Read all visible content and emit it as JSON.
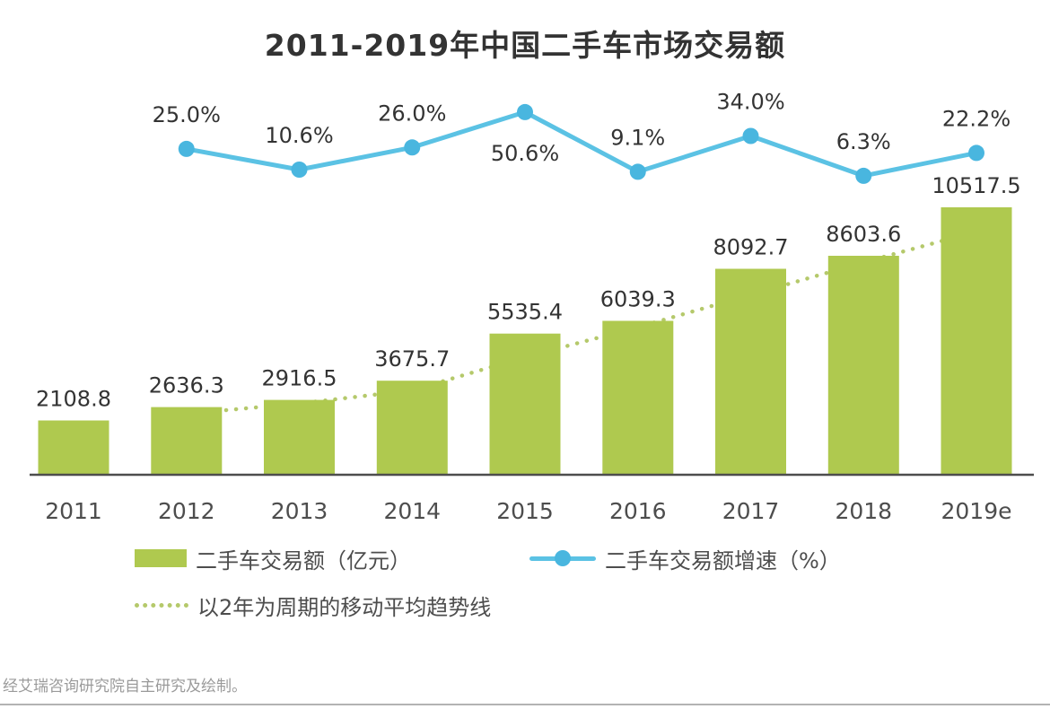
{
  "chart_data": {
    "type": "bar+line",
    "title": "2011-2019年中国二手车市场交易额",
    "categories": [
      "2011",
      "2012",
      "2013",
      "2014",
      "2015",
      "2016",
      "2017",
      "2018",
      "2019e"
    ],
    "series": [
      {
        "name": "二手车交易额（亿元）",
        "type": "bar",
        "color": "#AFC94F",
        "values": [
          2108.8,
          2636.3,
          2916.5,
          3675.7,
          5535.4,
          6039.3,
          8092.7,
          8603.6,
          10517.5
        ],
        "labels": [
          "2108.8",
          "2636.3",
          "2916.5",
          "3675.7",
          "5535.4",
          "6039.3",
          "8092.7",
          "8603.6",
          "10517.5"
        ]
      },
      {
        "name": "二手车交易额增速（%）",
        "type": "line",
        "color": "#5BC2E4",
        "marker_color": "#49B6DF",
        "categories": [
          "2012",
          "2013",
          "2014",
          "2015",
          "2016",
          "2017",
          "2018",
          "2019e"
        ],
        "values": [
          25.0,
          10.6,
          26.0,
          50.6,
          9.1,
          34.0,
          6.3,
          22.2
        ],
        "labels": [
          "25.0%",
          "10.6%",
          "26.0%",
          "50.6%",
          "9.1%",
          "34.0%",
          "6.3%",
          "22.2%"
        ]
      },
      {
        "name": "以2年为周期的移动平均趋势线",
        "type": "dotted-line",
        "color": "#B5C96B",
        "categories": [
          "2012",
          "2013",
          "2014",
          "2015",
          "2016",
          "2017",
          "2018",
          "2019e"
        ],
        "values": [
          2372.6,
          2776.4,
          3296.1,
          4605.6,
          5787.4,
          7066.0,
          8348.2,
          9560.6
        ]
      }
    ],
    "xlabel": "",
    "ylabel": "",
    "ylim_bar": [
      0,
      10600
    ],
    "ylim_pct": [
      0,
      60
    ],
    "grid": false,
    "legend_position": "bottom-left",
    "text_color": "#333333",
    "axis_color": "#4d4d4d"
  },
  "footer": {
    "text": "经艾瑞咨询研究院自主研究及绘制。"
  }
}
